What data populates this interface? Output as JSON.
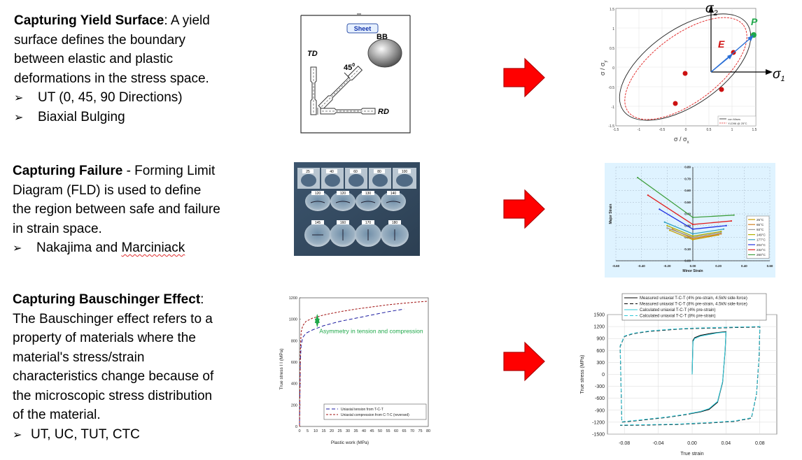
{
  "colors": {
    "arrow": "#ff0000",
    "arrow_outline": "#8b0000",
    "fld_bg": "#dff3ff",
    "green": "#1fa84a",
    "blue_pt": "#2a6fd6"
  },
  "section1": {
    "title": "Capturing Yield Surface",
    "body": ": A yield surface defines the boundary between elastic and plastic deformations in the stress space.",
    "bullets": [
      "UT (0, 45, 90 Directions)",
      "Biaxial Bulging"
    ],
    "sketch": {
      "sheet": "Sheet",
      "bb": "BB",
      "td": "TD",
      "rd": "RD",
      "angle": "45",
      "angle_sup": "0"
    },
    "yield_plot": {
      "sigma2": "σ",
      "sigma2_sub": "2",
      "sigma1": "σ",
      "sigma1_sub": "1",
      "label_p": "P",
      "label_e": "E",
      "xlabel": "σ / σ",
      "xlabel_sub": "x",
      "ylabel": "σ / σ",
      "ylabel_sub": "y",
      "ticks": [
        "-1.5",
        "-1",
        "-0.5",
        "0",
        "0.5",
        "1",
        "1.5"
      ],
      "legend": [
        "von Mises",
        "YLD96 @ 25°C"
      ]
    }
  },
  "section2": {
    "title": "Capturing Failure",
    "body": " - Forming Limit Diagram (FLD) is used to define the region between safe and failure in strain space.",
    "bullet_prefix": "Nakajima and ",
    "bullet_squiggle": "Marciniack",
    "photo_labels": [
      "25",
      "40",
      "60",
      "80",
      "100",
      "120",
      "120",
      "130",
      "140",
      "145",
      "160",
      "170",
      "180"
    ],
    "chart_data": {
      "type": "line",
      "xlabel": "Minor Strain",
      "ylabel": "Major Strain",
      "x_ticks": [
        "-0.60",
        "-0.40",
        "-0.20",
        "0.00",
        "0.20",
        "0.40",
        "0.60"
      ],
      "y_ticks": [
        "0.00",
        "0.10",
        "0.20",
        "0.30",
        "0.40",
        "0.50",
        "0.60",
        "0.70",
        "0.80"
      ],
      "xlim": [
        -0.6,
        0.6
      ],
      "ylim": [
        0,
        0.8
      ],
      "series": [
        {
          "name": "25°C",
          "color": "#c8a000",
          "x": [
            -0.18,
            0.0,
            0.2
          ],
          "y": [
            0.26,
            0.18,
            0.22
          ]
        },
        {
          "name": "65°C",
          "color": "#d08020",
          "x": [
            -0.16,
            0.0,
            0.22
          ],
          "y": [
            0.27,
            0.19,
            0.23
          ]
        },
        {
          "name": "93°C",
          "color": "#9a9a9a",
          "x": [
            -0.2,
            0.0,
            0.22
          ],
          "y": [
            0.28,
            0.2,
            0.24
          ]
        },
        {
          "name": "149°C",
          "color": "#b0b000",
          "x": [
            -0.2,
            0.0,
            0.22
          ],
          "y": [
            0.3,
            0.21,
            0.25
          ]
        },
        {
          "name": "177°C",
          "color": "#30a0c0",
          "x": [
            -0.22,
            0.0,
            0.24
          ],
          "y": [
            0.33,
            0.23,
            0.27
          ]
        },
        {
          "name": "204°C",
          "color": "#2030e0",
          "x": [
            -0.26,
            0.0,
            0.26
          ],
          "y": [
            0.44,
            0.27,
            0.3
          ]
        },
        {
          "name": "232°C",
          "color": "#e02020",
          "x": [
            -0.35,
            0.0,
            0.3
          ],
          "y": [
            0.56,
            0.31,
            0.34
          ]
        },
        {
          "name": "260°C",
          "color": "#40a040",
          "x": [
            -0.43,
            0.0,
            0.32
          ],
          "y": [
            0.71,
            0.37,
            0.39
          ]
        }
      ]
    }
  },
  "section3": {
    "title": "Capturing Bauschinger Effect",
    "body": ": The Bauschinger effect refers to a property of materials where the material's stress/strain characteristics change because of the microscopic stress distribution of the material.",
    "bullets": [
      "UT, UC, TUT, CTC"
    ],
    "asym_chart": {
      "chart_data": {
        "type": "line",
        "xlabel": "Plastic work (MPa)",
        "ylabel": "True stress I I (MPa)",
        "annotation": "Asymmetry in tension and compression",
        "x_ticks": [
          "0",
          "5",
          "10",
          "15",
          "20",
          "25",
          "30",
          "35",
          "40",
          "45",
          "50",
          "55",
          "60",
          "65",
          "70",
          "75",
          "80"
        ],
        "y_ticks": [
          "0",
          "200",
          "400",
          "600",
          "800",
          "1000",
          "1200"
        ],
        "xlim": [
          0,
          80
        ],
        "ylim": [
          0,
          1200
        ],
        "series": [
          {
            "name": "Uniaxial tension from T-C-T",
            "color": "#1a1aa0",
            "x": [
              0,
              0.5,
              1,
              2,
              4,
              8,
              15,
              25,
              35,
              45,
              55,
              65
            ],
            "y": [
              0,
              600,
              760,
              830,
              870,
              900,
              940,
              980,
              1010,
              1040,
              1070,
              1095
            ]
          },
          {
            "name": "Uniaxial compression from C-T-C (reversed)",
            "color": "#a01010",
            "x": [
              0,
              0.5,
              1,
              2,
              4,
              8,
              15,
              25,
              35,
              45,
              55,
              65,
              75,
              80
            ],
            "y": [
              0,
              700,
              880,
              940,
              980,
              1010,
              1040,
              1070,
              1095,
              1115,
              1135,
              1150,
              1163,
              1168
            ]
          }
        ]
      }
    },
    "hyst_chart": {
      "chart_data": {
        "type": "line",
        "xlabel": "True strain",
        "ylabel": "True stress (MPa)",
        "x_ticks": [
          "-0.08",
          "-0.04",
          "0.00",
          "0.04",
          "0.08"
        ],
        "y_ticks": [
          "1500",
          "1200",
          "900",
          "600",
          "300",
          "0",
          "-300",
          "-600",
          "-900",
          "-1200",
          "-1500"
        ],
        "xlim": [
          -0.1,
          0.1
        ],
        "ylim": [
          -1500,
          1500
        ],
        "series": [
          {
            "name": "Measured uniaxial T-C-T (4% pre-strain, 4.5kN side-force)",
            "color": "#000000",
            "dash": "",
            "x": [
              0.0,
              0.001,
              0.003,
              0.01,
              0.02,
              0.03,
              0.04,
              0.039,
              0.036,
              0.03,
              0.02,
              0.01,
              0.0
            ],
            "y": [
              0,
              850,
              920,
              980,
              1020,
              1050,
              1070,
              600,
              -200,
              -700,
              -880,
              -940,
              -980
            ]
          },
          {
            "name": "Measured uniaxial T-C-T (8% pre-strain, 4.5kN side-force)",
            "color": "#000000",
            "dash": "5 3",
            "x": [
              0.0,
              -0.01,
              -0.03,
              -0.06,
              -0.083,
              -0.085,
              -0.08,
              -0.07,
              -0.05,
              -0.02,
              0.0,
              0.02,
              0.05,
              0.07,
              0.08,
              0.079,
              0.076,
              0.07,
              0.05,
              0.02,
              0.0,
              -0.02,
              -0.05,
              -0.08,
              -0.085
            ],
            "y": [
              -980,
              -1020,
              -1080,
              -1150,
              -1200,
              700,
              950,
              1020,
              1080,
              1130,
              1150,
              1160,
              1175,
              1185,
              1190,
              400,
              -500,
              -1100,
              -1180,
              -1220,
              -1240,
              -1260,
              -1270,
              -1280,
              -1280
            ]
          },
          {
            "name": "Calculated uniaxial T-C-T (4% pre-strain)",
            "color": "#30c8d8",
            "dash": "",
            "x": [
              0.0,
              0.001,
              0.003,
              0.01,
              0.02,
              0.03,
              0.04,
              0.039,
              0.036,
              0.03,
              0.02,
              0.01,
              0.0
            ],
            "y": [
              0,
              820,
              900,
              960,
              1000,
              1040,
              1060,
              620,
              -180,
              -680,
              -860,
              -930,
              -970
            ]
          },
          {
            "name": "Calculated uniaxial T-C-T (8% pre-strain)",
            "color": "#30c8d8",
            "dash": "5 3",
            "x": [
              0.0,
              -0.01,
              -0.03,
              -0.06,
              -0.083,
              -0.085,
              -0.08,
              -0.07,
              -0.05,
              -0.02,
              0.0,
              0.02,
              0.05,
              0.07,
              0.08,
              0.079,
              0.076,
              0.07,
              0.05,
              0.02,
              0.0,
              -0.02,
              -0.05,
              -0.08,
              -0.085
            ],
            "y": [
              -970,
              -1010,
              -1070,
              -1140,
              -1190,
              720,
              960,
              1030,
              1090,
              1140,
              1160,
              1170,
              1185,
              1195,
              1200,
              420,
              -480,
              -1090,
              -1170,
              -1210,
              -1230,
              -1250,
              -1260,
              -1270,
              -1270
            ]
          }
        ]
      }
    }
  }
}
